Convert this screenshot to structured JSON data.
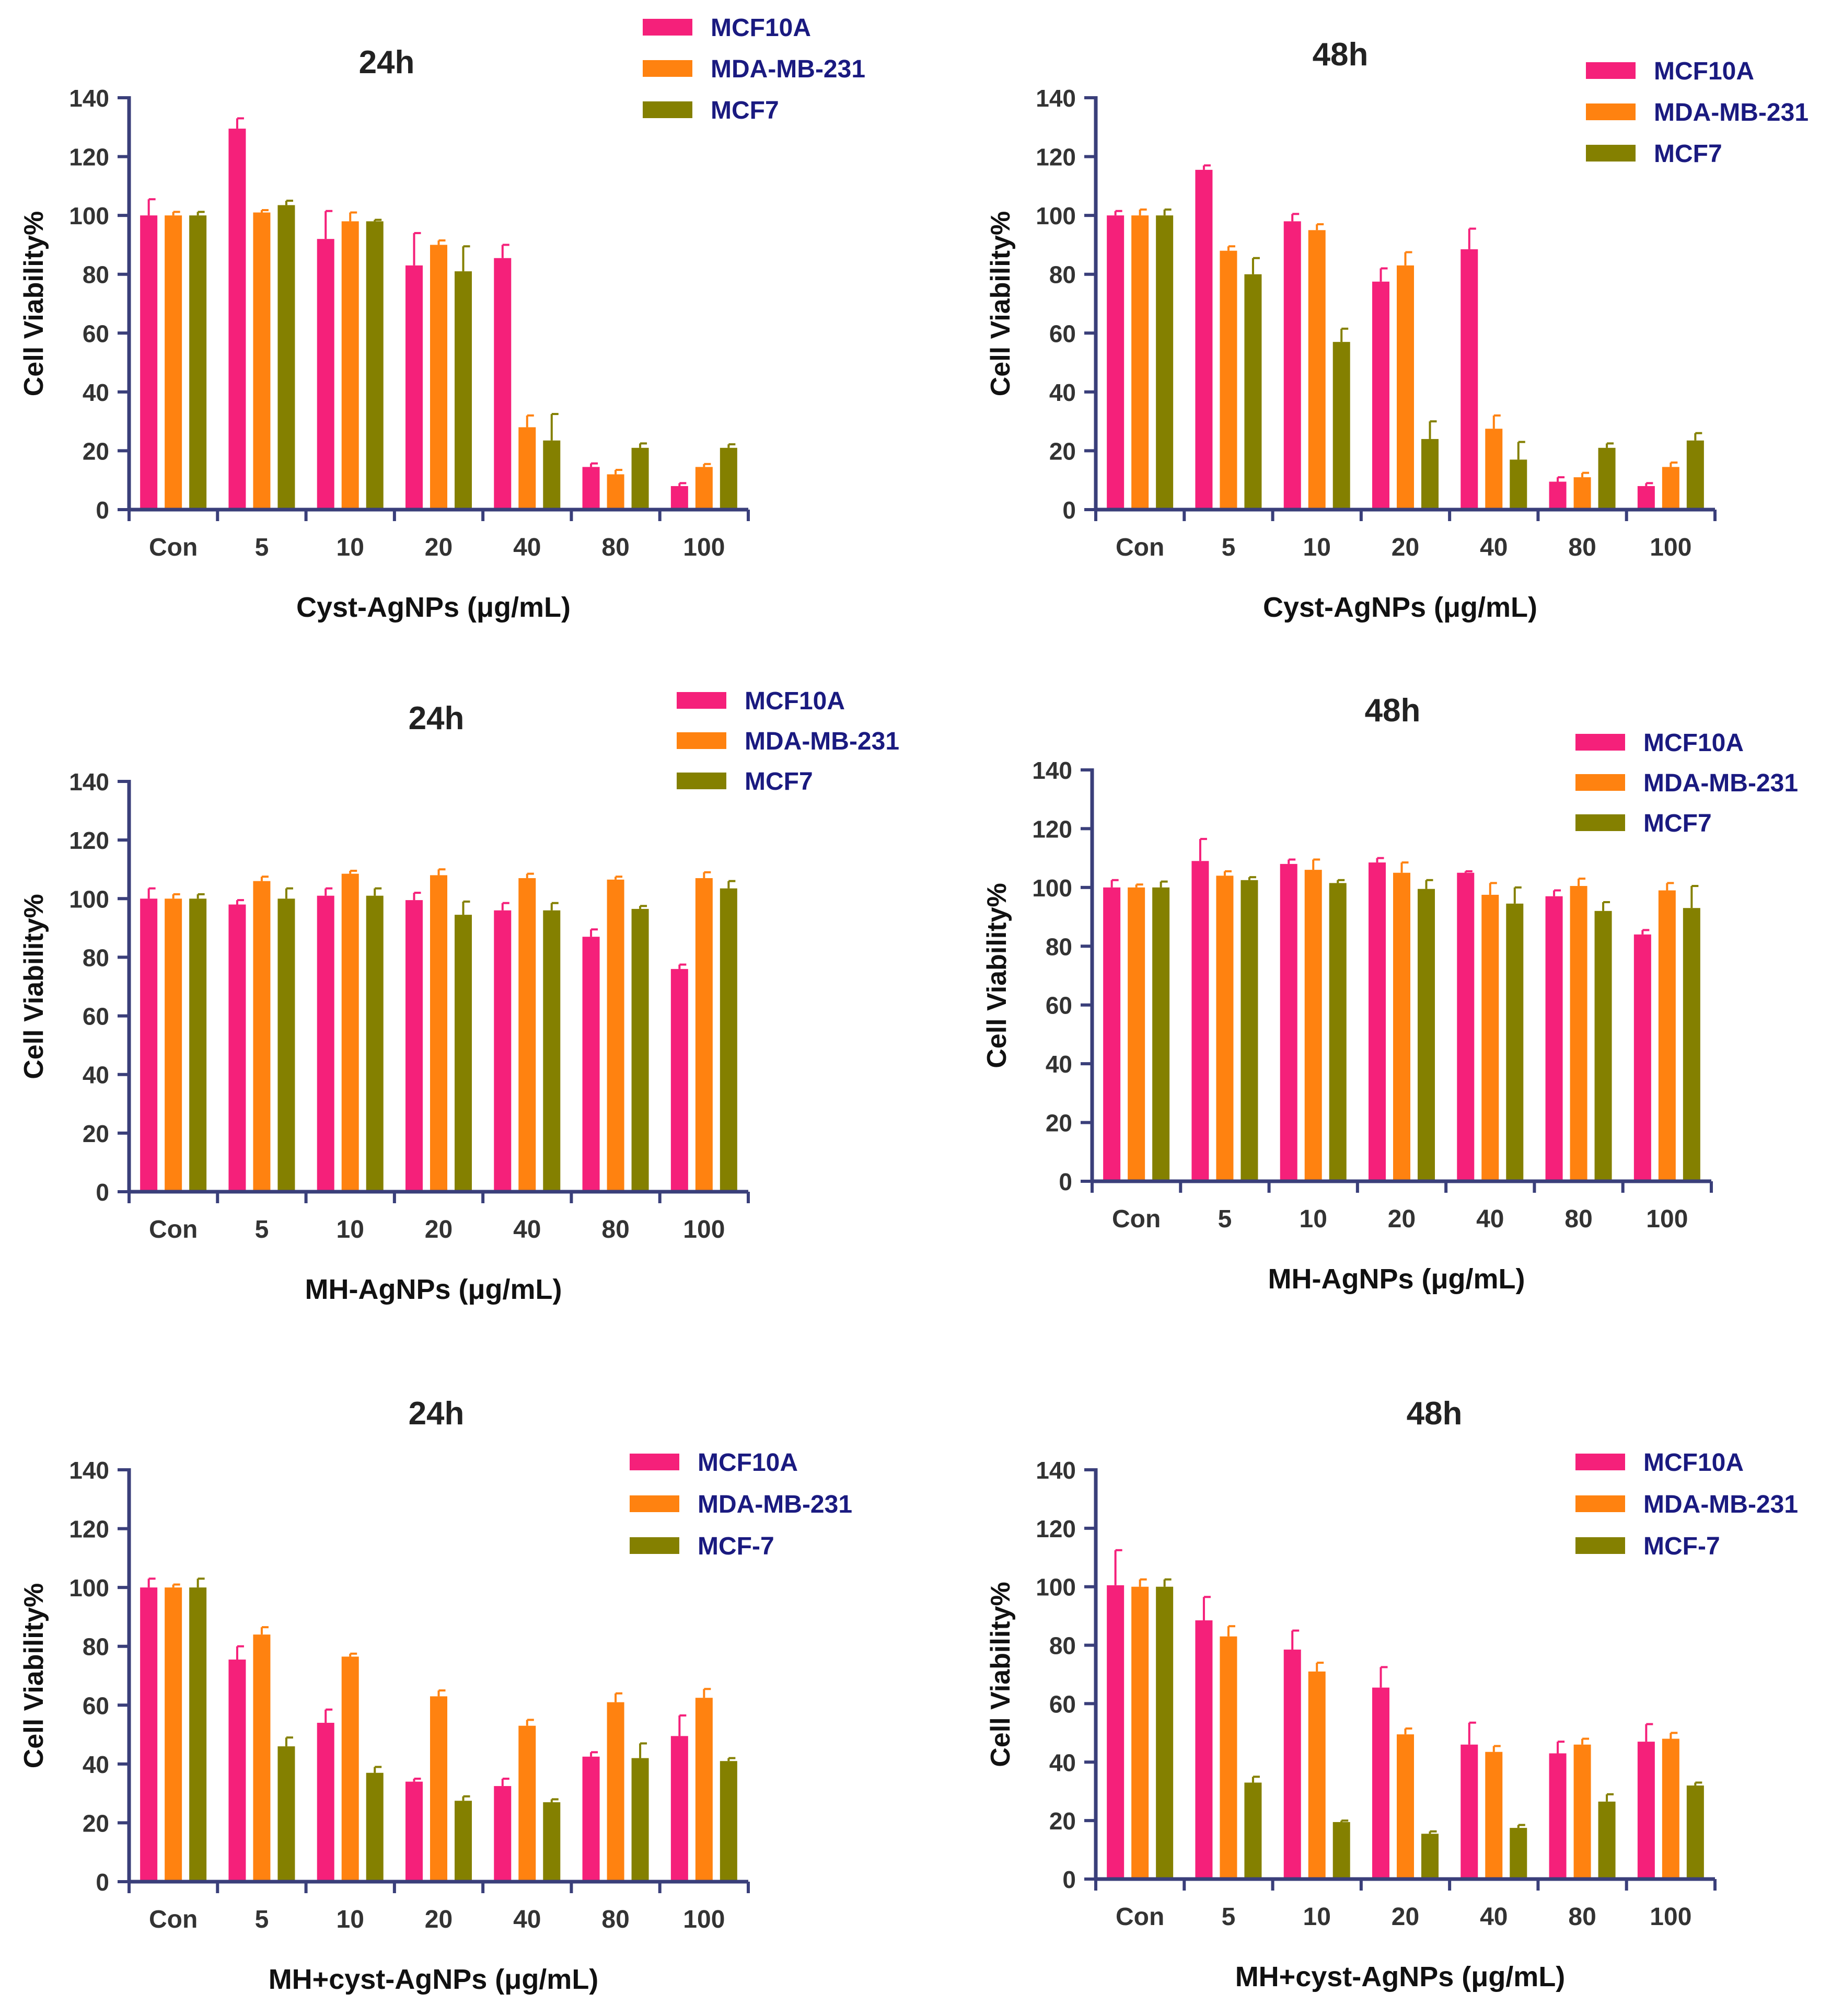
{
  "colors": {
    "axis": "#3a3f7a",
    "tick_text": "#333333",
    "title_text": "#222222",
    "legend_text": "#1a1a80"
  },
  "chart_data": [
    {
      "type": "bar",
      "title": "24h",
      "xlabel": "Cyst-AgNPs (μg/mL)",
      "ylabel": "Cell Viability%",
      "ylim": [
        0,
        140
      ],
      "yticks": [
        "0",
        "20",
        "40",
        "60",
        "80",
        "100",
        "120",
        "140"
      ],
      "categories": [
        "Con",
        "5",
        "10",
        "20",
        "40",
        "80",
        "100"
      ],
      "legend_position": "top-right",
      "series": [
        {
          "name": "MCF10A",
          "color": "#f5207a",
          "values": [
            100,
            129.5,
            92,
            83,
            85.5,
            14.5,
            8
          ],
          "errors": [
            5.5,
            3.5,
            9.5,
            11,
            4.5,
            1.2,
            1
          ]
        },
        {
          "name": "MDA-MB-231",
          "color": "#ff8210",
          "values": [
            100,
            101,
            98,
            90,
            28,
            12,
            14.5
          ],
          "errors": [
            1.2,
            0.8,
            3,
            1.5,
            4,
            1.5,
            1
          ]
        },
        {
          "name": "MCF7",
          "color": "#848000",
          "values": [
            100,
            103.5,
            98,
            81,
            23.5,
            21,
            21
          ],
          "errors": [
            1.2,
            1.5,
            0.5,
            8.5,
            9,
            1.5,
            1.2
          ]
        }
      ]
    },
    {
      "type": "bar",
      "title": "48h",
      "xlabel": "Cyst-AgNPs (μg/mL)",
      "ylabel": "Cell Viability%",
      "ylim": [
        0,
        140
      ],
      "yticks": [
        "0",
        "20",
        "40",
        "60",
        "80",
        "100",
        "120",
        "140"
      ],
      "categories": [
        "Con",
        "5",
        "10",
        "20",
        "40",
        "80",
        "100"
      ],
      "legend_position": "top-right",
      "series": [
        {
          "name": "MCF10A",
          "color": "#f5207a",
          "values": [
            100,
            115.5,
            98,
            77.5,
            88.5,
            9.5,
            8
          ],
          "errors": [
            1.5,
            1.5,
            2.5,
            4.5,
            7,
            1.5,
            1
          ]
        },
        {
          "name": "MDA-MB-231",
          "color": "#ff8210",
          "values": [
            100,
            88,
            95,
            83,
            27.5,
            11,
            14.5
          ],
          "errors": [
            2,
            1.5,
            2,
            4.5,
            4.5,
            1.5,
            1.5
          ]
        },
        {
          "name": "MCF7",
          "color": "#848000",
          "values": [
            100,
            80,
            57,
            24,
            17,
            21,
            23.5
          ],
          "errors": [
            2,
            5.5,
            4.5,
            6,
            6,
            1.5,
            2.5
          ]
        }
      ]
    },
    {
      "type": "bar",
      "title": "24h",
      "xlabel": "MH-AgNPs (μg/mL)",
      "ylabel": "Cell Viability%",
      "ylim": [
        0,
        140
      ],
      "yticks": [
        "0",
        "20",
        "40",
        "60",
        "80",
        "100",
        "120",
        "140"
      ],
      "categories": [
        "Con",
        "5",
        "10",
        "20",
        "40",
        "80",
        "100"
      ],
      "legend_position": "top-right",
      "series": [
        {
          "name": "MCF10A",
          "color": "#f5207a",
          "values": [
            100,
            98,
            101,
            99.5,
            96,
            87,
            76
          ],
          "errors": [
            3.5,
            1.5,
            2.5,
            2.5,
            2.5,
            2.5,
            1.5
          ]
        },
        {
          "name": "MDA-MB-231",
          "color": "#ff8210",
          "values": [
            100,
            106,
            108.5,
            108,
            107,
            106.5,
            107
          ],
          "errors": [
            1.5,
            1.5,
            1,
            2,
            1.5,
            1,
            2
          ]
        },
        {
          "name": "MCF7",
          "color": "#848000",
          "values": [
            100,
            100,
            101,
            94.5,
            96,
            96.5,
            103.5
          ],
          "errors": [
            1.5,
            3.5,
            2.5,
            4.5,
            2.5,
            1,
            2.5
          ]
        }
      ]
    },
    {
      "type": "bar",
      "title": "48h",
      "xlabel": "MH-AgNPs (μg/mL)",
      "ylabel": "Cell Viability%",
      "ylim": [
        0,
        140
      ],
      "yticks": [
        "0",
        "20",
        "40",
        "60",
        "80",
        "100",
        "120",
        "140"
      ],
      "categories": [
        "Con",
        "5",
        "10",
        "20",
        "40",
        "80",
        "100"
      ],
      "legend_position": "top-right",
      "series": [
        {
          "name": "MCF10A",
          "color": "#f5207a",
          "values": [
            100,
            109,
            108,
            108.5,
            105,
            97,
            84
          ],
          "errors": [
            2.5,
            7.5,
            1.5,
            1.5,
            0.5,
            2,
            1.5
          ]
        },
        {
          "name": "MDA-MB-231",
          "color": "#ff8210",
          "values": [
            100,
            104,
            106,
            105,
            97.5,
            100.5,
            99
          ],
          "errors": [
            1,
            1.5,
            3.5,
            3.5,
            4,
            2.5,
            2.5
          ]
        },
        {
          "name": "MCF7",
          "color": "#848000",
          "values": [
            100,
            102.5,
            101.5,
            99.5,
            94.5,
            92,
            93
          ],
          "errors": [
            2,
            1,
            1,
            3,
            5.5,
            3,
            7.5
          ]
        }
      ]
    },
    {
      "type": "bar",
      "title": "24h",
      "xlabel": "MH+cyst-AgNPs (μg/mL)",
      "ylabel": "Cell Viability%",
      "ylim": [
        0,
        140
      ],
      "yticks": [
        "0",
        "20",
        "40",
        "60",
        "80",
        "100",
        "120",
        "140"
      ],
      "categories": [
        "Con",
        "5",
        "10",
        "20",
        "40",
        "80",
        "100"
      ],
      "legend_position": "top-right",
      "series": [
        {
          "name": "MCF10A",
          "color": "#f5207a",
          "values": [
            100,
            75.5,
            54,
            34,
            32.5,
            42.5,
            49.5
          ],
          "errors": [
            3,
            4.5,
            4.5,
            1,
            2.5,
            1.5,
            7
          ]
        },
        {
          "name": "MDA-MB-231",
          "color": "#ff8210",
          "values": [
            100,
            84,
            76.5,
            63,
            53,
            61,
            62.5
          ],
          "errors": [
            1,
            2.5,
            1,
            2,
            2,
            3,
            3
          ]
        },
        {
          "name": "MCF-7",
          "color": "#848000",
          "values": [
            100,
            46,
            37,
            27.5,
            27,
            42,
            41
          ],
          "errors": [
            3,
            3,
            2,
            1.5,
            1,
            5,
            1
          ]
        }
      ]
    },
    {
      "type": "bar",
      "title": "48h",
      "xlabel": "MH+cyst-AgNPs (μg/mL)",
      "ylabel": "Cell Viability%",
      "ylim": [
        0,
        140
      ],
      "yticks": [
        "0",
        "20",
        "40",
        "60",
        "80",
        "100",
        "120",
        "140"
      ],
      "categories": [
        "Con",
        "5",
        "10",
        "20",
        "40",
        "80",
        "100"
      ],
      "legend_position": "top-right",
      "series": [
        {
          "name": "MCF10A",
          "color": "#f5207a",
          "values": [
            100.5,
            88.5,
            78.5,
            65.5,
            46,
            43,
            47
          ],
          "errors": [
            12,
            8,
            6.5,
            7,
            7.5,
            4,
            6
          ]
        },
        {
          "name": "MDA-MB-231",
          "color": "#ff8210",
          "values": [
            100,
            83,
            71,
            49.5,
            43.5,
            46,
            48
          ],
          "errors": [
            2.5,
            3.5,
            3,
            2,
            2,
            2,
            2
          ]
        },
        {
          "name": "MCF-7",
          "color": "#848000",
          "values": [
            100,
            33,
            19.5,
            15.5,
            17.5,
            26.5,
            32
          ],
          "errors": [
            2.5,
            2,
            0.5,
            0.8,
            1,
            2.5,
            1
          ]
        }
      ]
    }
  ]
}
